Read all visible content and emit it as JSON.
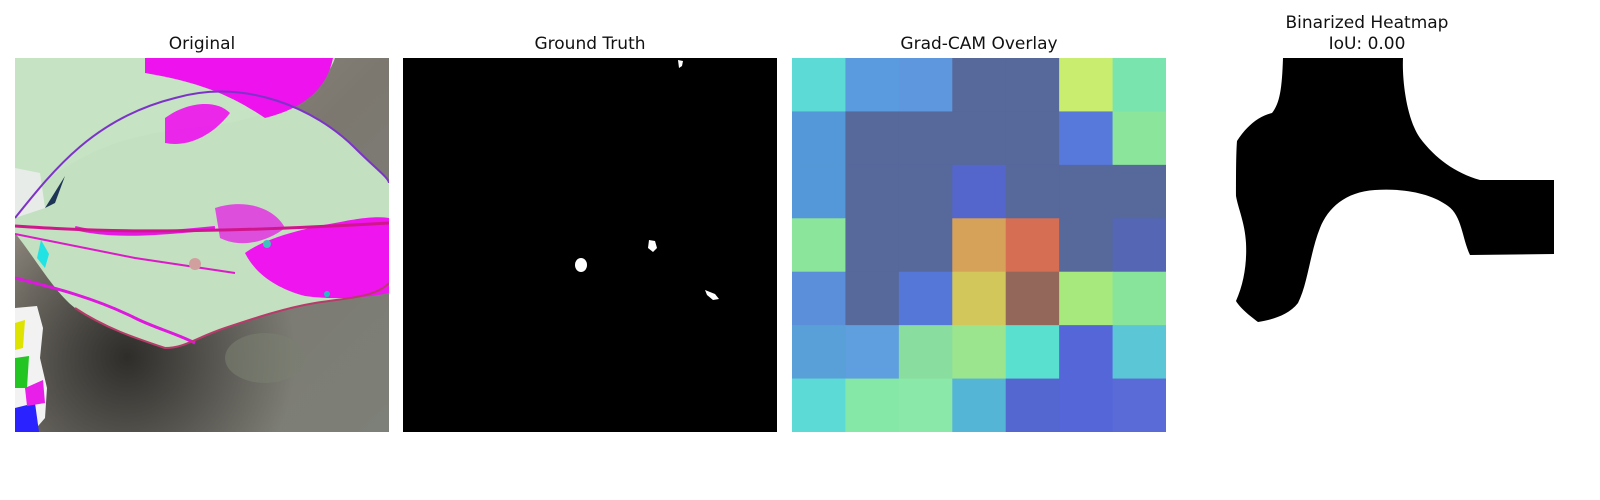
{
  "panels": [
    {
      "title": "Original"
    },
    {
      "title": "Ground Truth"
    },
    {
      "title": "Grad-CAM Overlay"
    },
    {
      "title_line1": "Binarized Heatmap",
      "title_line2": "IoU: 0.00"
    }
  ],
  "gradcam_grid": [
    [
      "#5cdbd6",
      "#5a9ade",
      "#5f97de",
      "#57689b",
      "#57689b",
      "#c9ee6f",
      "#79e4ae"
    ],
    [
      "#5598d9",
      "#57689b",
      "#57689b",
      "#57689b",
      "#57689b",
      "#5679db",
      "#8be59a"
    ],
    [
      "#5598d9",
      "#57689b",
      "#57689b",
      "#5466cc",
      "#57689b",
      "#57689b",
      "#57689b"
    ],
    [
      "#8be59a",
      "#57689b",
      "#57689b",
      "#d6a25a",
      "#d66e54",
      "#57689b",
      "#5466b4"
    ],
    [
      "#5b8fda",
      "#57689b",
      "#5577d8",
      "#d2c75a",
      "#93685a",
      "#a8e97e",
      "#88e49a"
    ],
    [
      "#5aa0d8",
      "#5f9edf",
      "#89dd9e",
      "#9be58f",
      "#5ae0cf",
      "#5466d8",
      "#5ac6d6"
    ],
    [
      "#5cdbd6",
      "#85e8a6",
      "#8ae9a9",
      "#55b5d6",
      "#5466d0",
      "#5566d8",
      "#5a6ad6"
    ]
  ]
}
